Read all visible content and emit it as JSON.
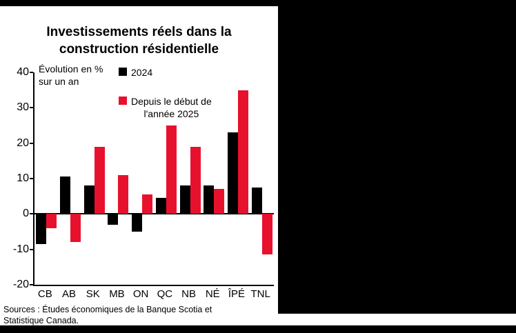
{
  "colors": {
    "background": "#000000",
    "panel": "#ffffff",
    "axis": "#000000",
    "text": "#000000",
    "bar_2024": "#000000",
    "bar_2025": "#e8112d"
  },
  "title": {
    "line1": "Investissements réels dans la",
    "line2": "construction résidentielle"
  },
  "annotation": {
    "line1": "Évolution en %",
    "line2": "sur un an"
  },
  "legend": {
    "item1": {
      "label": "2024",
      "color": "#000000"
    },
    "item2": {
      "line1": "Depuis le début de",
      "line2": "l'année 2025",
      "color": "#e8112d"
    }
  },
  "source": {
    "line1": "Sources : Études économiques de la Banque Scotia et",
    "line2": "Statistique Canada."
  },
  "chart_data": {
    "type": "bar",
    "title": "Investissements réels dans la construction résidentielle",
    "ylabel": "Évolution en % sur un an",
    "categories": [
      "CB",
      "AB",
      "SK",
      "MB",
      "ON",
      "QC",
      "NB",
      "NÉ",
      "ÎPÉ",
      "TNL"
    ],
    "series": [
      {
        "name": "2024",
        "key": "2024",
        "color": "#000000",
        "values": [
          -8.5,
          10.5,
          8,
          -3,
          -5,
          4.5,
          8,
          8,
          23,
          7.5
        ]
      },
      {
        "name": "Depuis le début de l'année 2025",
        "key": "2025-ytd",
        "color": "#e8112d",
        "values": [
          -4,
          -8,
          19,
          11,
          5.5,
          25,
          19,
          7,
          35,
          -11.5
        ]
      }
    ],
    "ylim": [
      -20,
      40
    ],
    "yticks": [
      40,
      30,
      20,
      10,
      0,
      -10,
      -20
    ],
    "grid": false,
    "legend_position": "upper-left-inside"
  }
}
